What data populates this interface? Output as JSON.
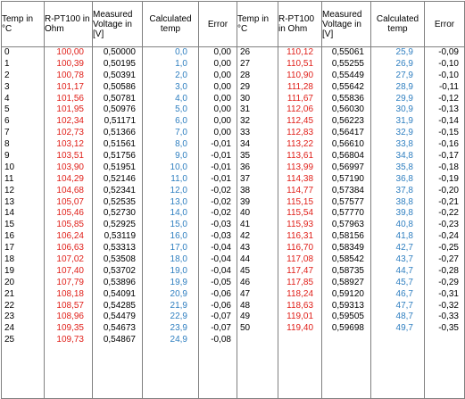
{
  "headers": {
    "temp": "Temp in °C",
    "rpt100": "R-PT100 in Ohm",
    "measured": "Measured Voltage in [V]",
    "calculated": "Calculated temp",
    "error": "Error"
  },
  "colors": {
    "resistance": "#e0201a",
    "calculated": "#2f7fc0",
    "text": "#000000",
    "grid": "#808080"
  },
  "left": {
    "temp": [
      "0",
      "1",
      "2",
      "3",
      "4",
      "5",
      "6",
      "7",
      "8",
      "9",
      "10",
      "11",
      "12",
      "13",
      "14",
      "15",
      "16",
      "17",
      "18",
      "19",
      "20",
      "21",
      "22",
      "23",
      "24",
      "25"
    ],
    "rpt100": [
      "100,00",
      "100,39",
      "100,78",
      "101,17",
      "101,56",
      "101,95",
      "102,34",
      "102,73",
      "103,12",
      "103,51",
      "103,90",
      "104,29",
      "104,68",
      "105,07",
      "105,46",
      "105,85",
      "106,24",
      "106,63",
      "107,02",
      "107,40",
      "107,79",
      "108,18",
      "108,57",
      "108,96",
      "109,35",
      "109,73"
    ],
    "voltage": [
      "0,50000",
      "0,50195",
      "0,50391",
      "0,50586",
      "0,50781",
      "0,50976",
      "0,51171",
      "0,51366",
      "0,51561",
      "0,51756",
      "0,51951",
      "0,52146",
      "0,52341",
      "0,52535",
      "0,52730",
      "0,52925",
      "0,53119",
      "0,53313",
      "0,53508",
      "0,53702",
      "0,53896",
      "0,54091",
      "0,54285",
      "0,54479",
      "0,54673",
      "0,54867"
    ],
    "calc": [
      "0,0",
      "1,0",
      "2,0",
      "3,0",
      "4,0",
      "5,0",
      "6,0",
      "7,0",
      "8,0",
      "9,0",
      "10,0",
      "11,0",
      "12,0",
      "13,0",
      "14,0",
      "15,0",
      "16,0",
      "17,0",
      "18,0",
      "19,0",
      "19,9",
      "20,9",
      "21,9",
      "22,9",
      "23,9",
      "24,9"
    ],
    "error": [
      "0,00",
      "0,00",
      "0,00",
      "0,00",
      "0,00",
      "0,00",
      "0,00",
      "0,00",
      "-0,01",
      "-0,01",
      "-0,01",
      "-0,01",
      "-0,02",
      "-0,02",
      "-0,02",
      "-0,03",
      "-0,03",
      "-0,04",
      "-0,04",
      "-0,04",
      "-0,05",
      "-0,06",
      "-0,06",
      "-0,07",
      "-0,07",
      "-0,08"
    ]
  },
  "right": {
    "temp": [
      "26",
      "27",
      "28",
      "29",
      "30",
      "31",
      "32",
      "33",
      "34",
      "35",
      "36",
      "37",
      "38",
      "39",
      "40",
      "41",
      "42",
      "43",
      "44",
      "45",
      "46",
      "47",
      "48",
      "49",
      "50"
    ],
    "rpt100": [
      "110,12",
      "110,51",
      "110,90",
      "111,28",
      "111,67",
      "112,06",
      "112,45",
      "112,83",
      "113,22",
      "113,61",
      "113,99",
      "114,38",
      "114,77",
      "115,15",
      "115,54",
      "115,93",
      "116,31",
      "116,70",
      "117,08",
      "117,47",
      "117,85",
      "118,24",
      "118,63",
      "119,01",
      "119,40"
    ],
    "voltage": [
      "0,55061",
      "0,55255",
      "0,55449",
      "0,55642",
      "0,55836",
      "0,56030",
      "0,56223",
      "0,56417",
      "0,56610",
      "0,56804",
      "0,56997",
      "0,57190",
      "0,57384",
      "0,57577",
      "0,57770",
      "0,57963",
      "0,58156",
      "0,58349",
      "0,58542",
      "0,58735",
      "0,58927",
      "0,59120",
      "0,59313",
      "0,59505",
      "0,59698"
    ],
    "calc": [
      "25,9",
      "26,9",
      "27,9",
      "28,9",
      "29,9",
      "30,9",
      "31,9",
      "32,9",
      "33,8",
      "34,8",
      "35,8",
      "36,8",
      "37,8",
      "38,8",
      "39,8",
      "40,8",
      "41,8",
      "42,7",
      "43,7",
      "44,7",
      "45,7",
      "46,7",
      "47,7",
      "48,7",
      "49,7"
    ],
    "error": [
      "-0,09",
      "-0,10",
      "-0,10",
      "-0,11",
      "-0,12",
      "-0,13",
      "-0,14",
      "-0,15",
      "-0,16",
      "-0,17",
      "-0,18",
      "-0,19",
      "-0,20",
      "-0,21",
      "-0,22",
      "-0,23",
      "-0,24",
      "-0,25",
      "-0,27",
      "-0,28",
      "-0,29",
      "-0,31",
      "-0,32",
      "-0,33",
      "-0,35"
    ]
  }
}
